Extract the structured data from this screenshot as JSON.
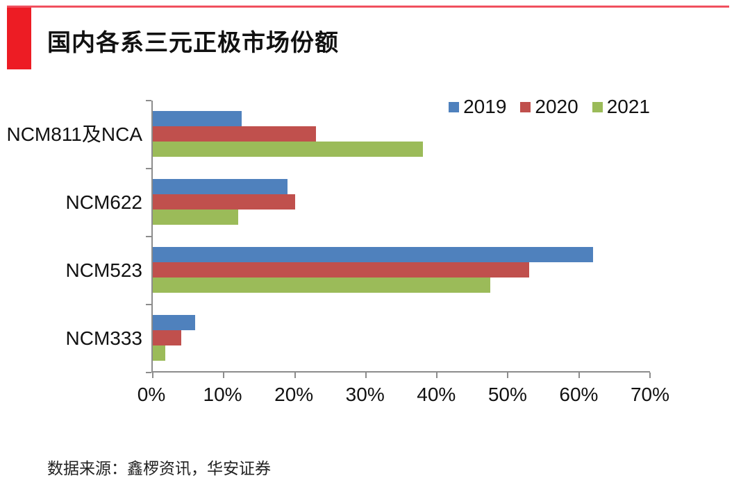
{
  "page": {
    "title": "国内各系三元正极市场份额",
    "source": "数据来源：鑫椤资讯，华安证券",
    "accent_color": "#ED1C24"
  },
  "chart_data": {
    "type": "bar",
    "orientation": "horizontal",
    "title": "国内各系三元正极市场份额",
    "categories": [
      "NCM811及NCA",
      "NCM622",
      "NCM523",
      "NCM333"
    ],
    "series": [
      {
        "name": "2019",
        "color": "#4F81BD",
        "values": [
          12.5,
          19,
          62,
          6
        ]
      },
      {
        "name": "2020",
        "color": "#C0504D",
        "values": [
          23,
          20,
          53,
          4
        ]
      },
      {
        "name": "2021",
        "color": "#9BBB59",
        "values": [
          38,
          12,
          47.5,
          1.8
        ]
      }
    ],
    "xlim": [
      0,
      70
    ],
    "x_ticks": [
      "0%",
      "10%",
      "20%",
      "30%",
      "40%",
      "50%",
      "60%",
      "70%"
    ],
    "legend_position": "top-right",
    "grid": false,
    "axis_color": "#8C8C8C"
  }
}
